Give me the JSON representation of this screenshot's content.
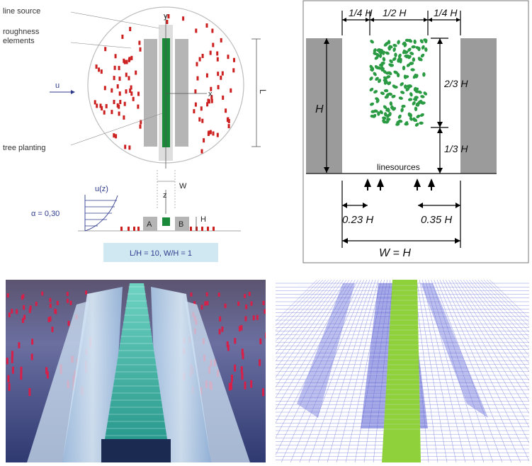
{
  "wind_tunnel_setup": {
    "labels": {
      "line_source": "line source",
      "roughness": "roughness\nelements",
      "tree_planting": "tree planting",
      "u": "u",
      "y": "y",
      "x": "x",
      "L": "L",
      "uz": "u(z)",
      "alpha": "α = 0,30",
      "z": "z",
      "W": "W",
      "H": "H",
      "A": "A",
      "B": "B",
      "ratio_box": "L/H = 10, W/H = 1"
    },
    "colors": {
      "roughness": "#cc1f1f",
      "tree": "#1a8a3a",
      "building": "#b5b5b5",
      "accent_text": "#2e3a8c",
      "ratio_bg": "#cfe8f2"
    }
  },
  "cross_section": {
    "labels": {
      "quarter_h_left": "1/4 H",
      "half_h": "1/2 H",
      "quarter_h_right": "1/4 H",
      "two_thirds_h": "2/3 H",
      "one_third_h": "1/3 H",
      "h_left": "H",
      "linesources": "linesources",
      "d023": "0.23 H",
      "d035": "0.35 H",
      "w_eq_h": "W = H"
    },
    "colors": {
      "building": "#9b9b9b",
      "tree": "#2a9a43"
    }
  },
  "photo": {
    "name": "wind tunnel model photograph"
  },
  "cfd_mesh": {
    "name": "CFD mesh rendering",
    "colors": {
      "mesh": "#5a5fd1",
      "tree_zone": "#8fd13a"
    }
  }
}
